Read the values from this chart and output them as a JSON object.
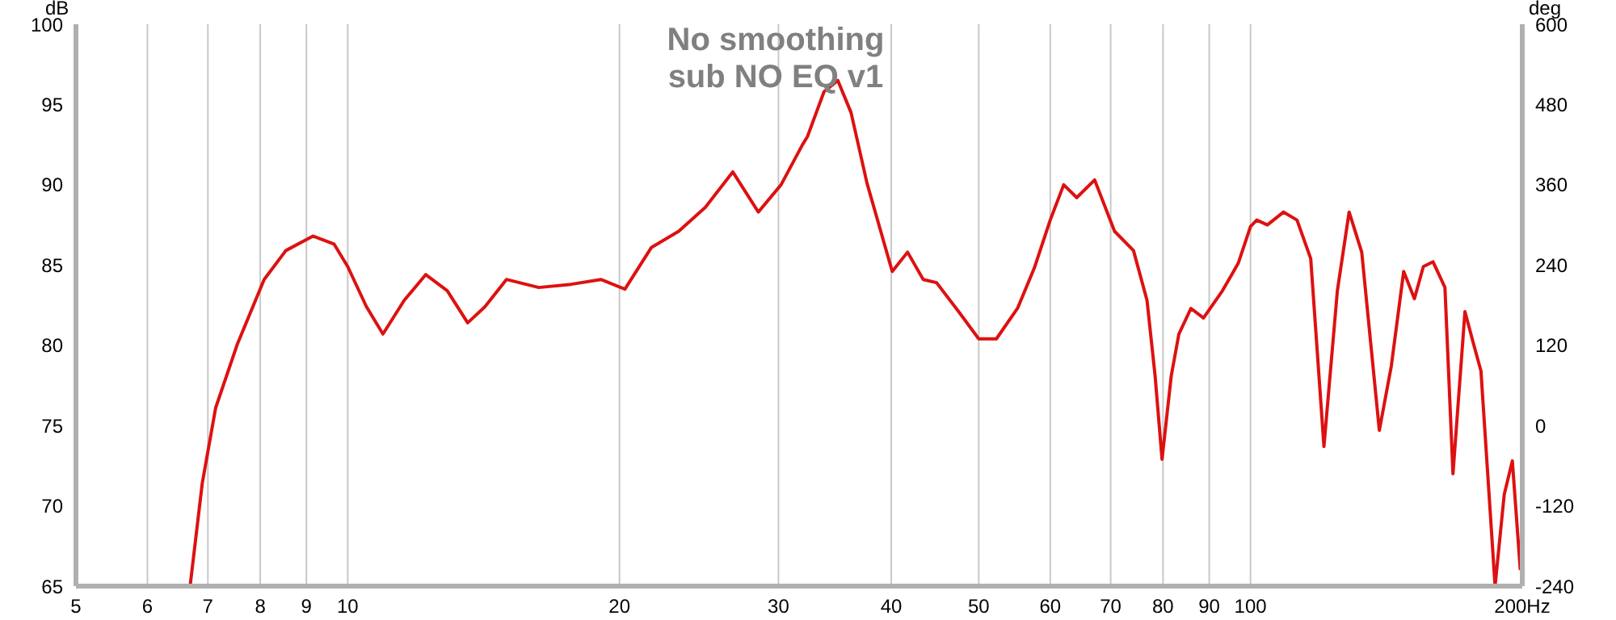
{
  "chart_data": {
    "type": "line",
    "title": "No smoothing",
    "subtitle": "sub NO EQ v1",
    "ylabel": "dB",
    "y2label": "deg",
    "x": [
      6.69,
      6.9,
      7.14,
      7.55,
      8.08,
      8.54,
      9.15,
      9.66,
      10.0,
      10.49,
      10.94,
      11.55,
      12.2,
      12.89,
      13.58,
      14.19,
      14.99,
      16.28,
      17.68,
      19.07,
      20.28,
      21.7,
      23.26,
      24.9,
      26.7,
      28.5,
      30.2,
      31.9,
      32.3,
      33.7,
      34.9,
      36.1,
      37.6,
      40.1,
      41.7,
      43.4,
      44.9,
      47.5,
      50,
      52.3,
      55.2,
      57.6,
      60,
      62.1,
      64.2,
      67.2,
      70.7,
      74.2,
      76.8,
      78.4,
      79.8,
      81.7,
      83.3,
      85.9,
      88.7,
      93.1,
      96.9,
      100,
      101.6,
      104.4,
      108.8,
      112.6,
      116.6,
      120.6,
      124.8,
      128.6,
      132.8,
      138.9,
      143.2,
      147.8,
      151.9,
      155.4,
      159.3,
      164.2,
      167.6,
      172.8,
      176.6,
      180,
      186.6,
      191,
      195,
      199
    ],
    "series": [
      {
        "color": "#dd1111",
        "values": [
          65,
          71.4,
          76.1,
          80.1,
          84.1,
          85.9,
          86.8,
          86.3,
          84.9,
          82.4,
          80.7,
          82.8,
          84.4,
          83.4,
          81.4,
          82.4,
          84.1,
          83.6,
          83.8,
          84.1,
          83.5,
          86.1,
          87.1,
          88.6,
          90.8,
          88.3,
          90.0,
          92.5,
          93.0,
          95.8,
          96.5,
          94.5,
          90.1,
          84.6,
          85.8,
          84.1,
          83.9,
          82.1,
          80.4,
          80.4,
          82.3,
          84.8,
          87.8,
          90.0,
          89.2,
          90.3,
          87.1,
          85.9,
          82.8,
          78.1,
          72.9,
          78.1,
          80.7,
          82.3,
          81.7,
          83.4,
          85.1,
          87.4,
          87.8,
          87.5,
          88.3,
          87.8,
          85.4,
          73.7,
          83.4,
          88.3,
          85.8,
          74.7,
          78.7,
          84.6,
          82.9,
          84.9,
          85.2,
          83.6,
          72.0,
          82.1,
          80.1,
          78.4,
          65,
          70.7,
          72.8,
          66.0
        ]
      }
    ],
    "log": "x",
    "xlim": [
      5,
      200
    ],
    "xticks": [
      5,
      6,
      7,
      8,
      9,
      10,
      20,
      30,
      40,
      50,
      60,
      70,
      80,
      90,
      100,
      {
        "value": 200,
        "label": "200Hz"
      }
    ],
    "ylim": [
      65,
      100
    ],
    "yticks": [
      65,
      70,
      75,
      80,
      85,
      90,
      95,
      100
    ],
    "y2lim": [
      -240,
      600
    ],
    "y2ticks": [
      -240,
      -120,
      0,
      120,
      240,
      360,
      480,
      600
    ],
    "grid": true,
    "legend": false,
    "marker": "none",
    "line_style": "solid"
  }
}
